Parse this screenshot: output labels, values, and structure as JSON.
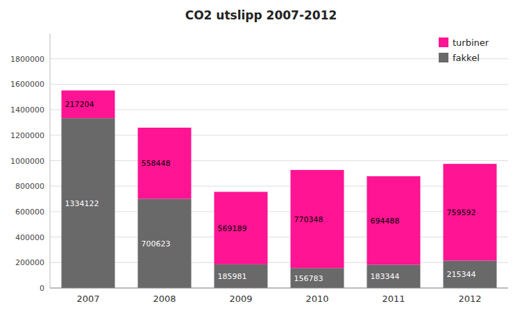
{
  "chart_data": {
    "type": "bar",
    "title": "CO2 utslipp 2007-2012",
    "categories": [
      "2007",
      "2008",
      "2009",
      "2010",
      "2011",
      "2012"
    ],
    "series": [
      {
        "name": "fakkel",
        "color": "#696969",
        "values": [
          1334122,
          700623,
          185981,
          156783,
          183344,
          215344
        ]
      },
      {
        "name": "turbiner",
        "color": "#FF1493",
        "values": [
          217204,
          558448,
          569189,
          770348,
          694488,
          759592
        ]
      }
    ],
    "stacked": true,
    "ylim": [
      0,
      2000000
    ],
    "yticks": [
      0,
      200000,
      400000,
      600000,
      800000,
      1000000,
      1200000,
      1400000,
      1600000,
      1800000
    ],
    "grid": true,
    "legend": "upper right",
    "data_labels": true
  }
}
